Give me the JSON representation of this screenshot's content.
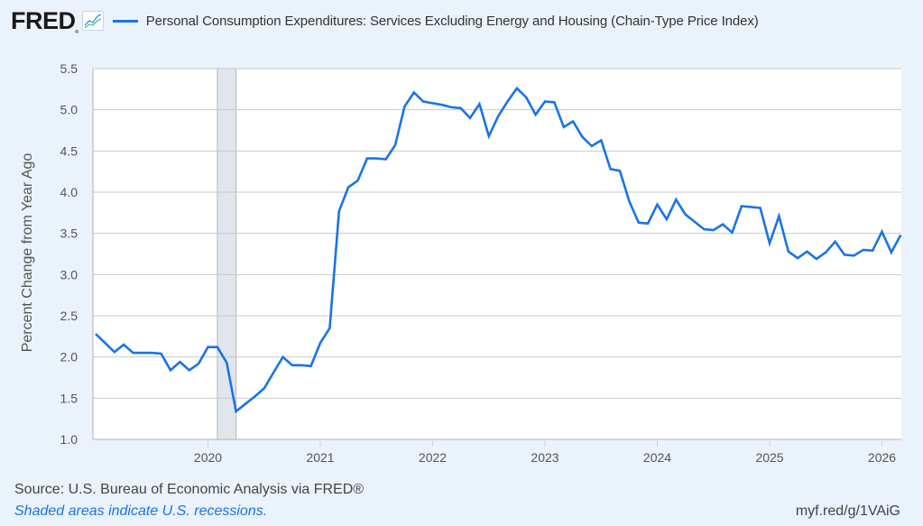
{
  "header": {
    "logo": "FRED",
    "logo_mark": "®",
    "graph_icon": "line-chart-icon",
    "series_title": "Personal Consumption Expenditures: Services Excluding Energy and Housing (Chain-Type Price Index)"
  },
  "footer": {
    "source": "Source: U.S. Bureau of Economic Analysis via FRED®",
    "recession_note": "Shaded areas indicate U.S. recessions.",
    "short_link": "myf.red/g/1VAiG"
  },
  "colors": {
    "line": "#1a73e8",
    "recession": "#e1e6ec",
    "background": "#eaf2fb",
    "grid": "#c8c8c8"
  },
  "chart_data": {
    "type": "line",
    "title": "Personal Consumption Expenditures: Services Excluding Energy and Housing (Chain-Type Price Index)",
    "xlabel": "",
    "ylabel": "Percent Change from Year Ago",
    "ylim": [
      1.0,
      5.5
    ],
    "yticks": [
      "1.0",
      "1.5",
      "2.0",
      "2.5",
      "3.0",
      "3.5",
      "4.0",
      "4.5",
      "5.0",
      "5.5"
    ],
    "xticks": [
      "2020",
      "2021",
      "2022",
      "2023",
      "2024",
      "2025",
      "2026"
    ],
    "x_start": "2019-01",
    "x_end": "2026-03",
    "frequency": "monthly",
    "grid": true,
    "legend": "top-left",
    "recessions": [
      {
        "start": "2020-02",
        "end": "2020-04"
      }
    ],
    "series": [
      {
        "name": "Personal Consumption Expenditures: Services Excluding Energy and Housing (Chain-Type Price Index)",
        "values": [
          2.28,
          2.17,
          2.06,
          2.15,
          2.05,
          2.05,
          2.05,
          2.04,
          1.84,
          1.94,
          1.84,
          1.92,
          2.12,
          2.12,
          1.93,
          1.34,
          1.43,
          1.52,
          1.62,
          1.81,
          2.0,
          1.9,
          1.9,
          1.89,
          2.17,
          2.35,
          3.77,
          4.06,
          4.14,
          4.41,
          4.41,
          4.4,
          4.57,
          5.04,
          5.21,
          5.1,
          5.08,
          5.06,
          5.03,
          5.02,
          4.9,
          5.07,
          4.68,
          4.92,
          5.1,
          5.26,
          5.15,
          4.94,
          5.1,
          5.09,
          4.79,
          4.86,
          4.67,
          4.56,
          4.63,
          4.28,
          4.26,
          3.89,
          3.63,
          3.62,
          3.85,
          3.67,
          3.91,
          3.73,
          3.64,
          3.55,
          3.54,
          3.61,
          3.51,
          3.83,
          3.82,
          3.81,
          3.38,
          3.71,
          3.28,
          3.2,
          3.28,
          3.19,
          3.27,
          3.4,
          3.24,
          3.23,
          3.3,
          3.29,
          3.52,
          3.27,
          3.48
        ]
      }
    ]
  }
}
